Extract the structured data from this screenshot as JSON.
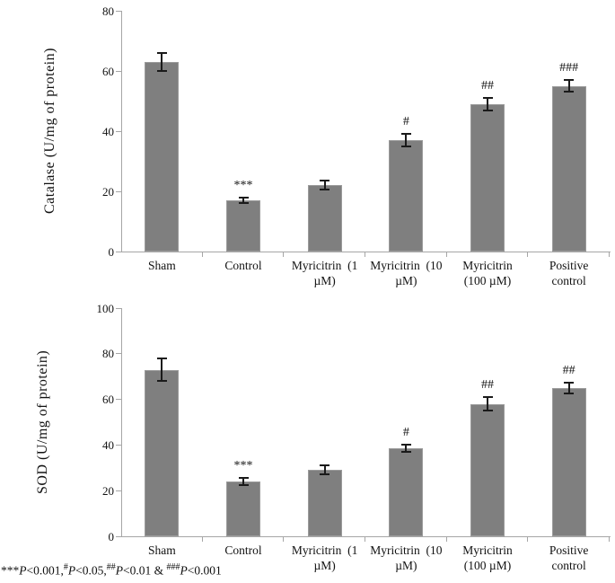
{
  "figure": {
    "background": "#ffffff",
    "bar_color": "#7f7f7f",
    "axis_color": "#a6a6a6",
    "error_bar_color": "#1a1a1a",
    "text_color": "#111111"
  },
  "chart_data": [
    {
      "type": "bar",
      "title": "",
      "ylabel": "Catalase (U/mg  of protein)",
      "xlabel": "",
      "ylim": [
        0,
        80
      ],
      "yticks": [
        0,
        20,
        40,
        60,
        80
      ],
      "grid": false,
      "legend_position": "none",
      "categories": [
        "Sham",
        "Control",
        "Myricitrin (1 µM)",
        "Myricitrin (10 µM)",
        "Myricitrin (100 µM)",
        "Positive control"
      ],
      "category_label_lines": [
        [
          "Sham"
        ],
        [
          "Control"
        ],
        [
          "Myricitrin  (1",
          "µM)"
        ],
        [
          "Myricitrin  (10",
          "µM)"
        ],
        [
          "Myricitrin",
          "(100 µM)"
        ],
        [
          "Positive",
          "control"
        ]
      ],
      "values": [
        63,
        17,
        22,
        37,
        49,
        55
      ],
      "errors": [
        3,
        1,
        1.5,
        2,
        2,
        2
      ],
      "significance": [
        "",
        "***",
        "",
        "#",
        "##",
        "###"
      ]
    },
    {
      "type": "bar",
      "title": "",
      "ylabel": "SOD (U/mg  of protein)",
      "xlabel": "",
      "ylim": [
        0,
        100
      ],
      "yticks": [
        0,
        20,
        40,
        60,
        80,
        100
      ],
      "grid": false,
      "legend_position": "none",
      "categories": [
        "Sham",
        "Control",
        "Myricitrin (1 µM)",
        "Myricitrin (10 µM)",
        "Myricitrin (100 µM)",
        "Positive control"
      ],
      "category_label_lines": [
        [
          "Sham"
        ],
        [
          "Control"
        ],
        [
          "Myricitrin  (1",
          "µM)"
        ],
        [
          "Myricitrin  (10",
          "µM)"
        ],
        [
          "Myricitrin",
          "(100 µM)"
        ],
        [
          "Positive",
          "control"
        ]
      ],
      "values": [
        73,
        24,
        29,
        38.5,
        58,
        65
      ],
      "errors": [
        5,
        1.5,
        2,
        1.5,
        3,
        2.5
      ],
      "significance": [
        "",
        "***",
        "",
        "#",
        "##",
        "##"
      ]
    }
  ],
  "footnote": {
    "segments": [
      {
        "text": "***",
        "style": "plain"
      },
      {
        "text": "P",
        "style": "italic"
      },
      {
        "text": "<0.001,",
        "style": "plain"
      },
      {
        "text": "#",
        "style": "sup"
      },
      {
        "text": "P",
        "style": "italic"
      },
      {
        "text": "<0.05,",
        "style": "plain"
      },
      {
        "text": "##",
        "style": "sup"
      },
      {
        "text": "P",
        "style": "italic"
      },
      {
        "text": "<0.01 & ",
        "style": "plain"
      },
      {
        "text": "###",
        "style": "sup"
      },
      {
        "text": "P",
        "style": "italic"
      },
      {
        "text": "<0.001",
        "style": "plain"
      }
    ]
  }
}
